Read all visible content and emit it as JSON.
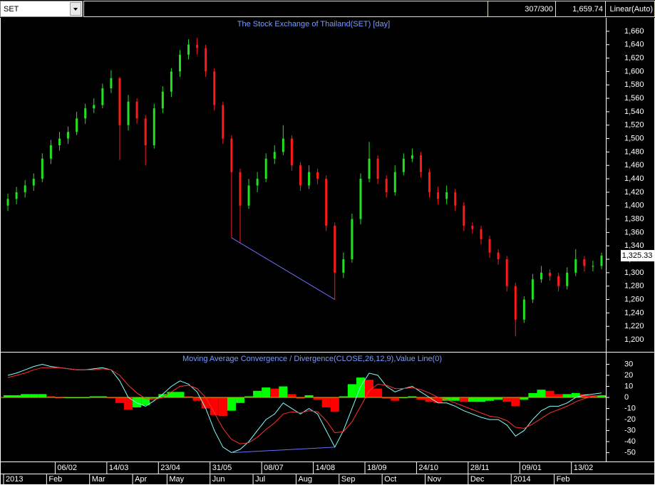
{
  "header": {
    "symbol": "SET",
    "count": "307/300",
    "value": "1,659.74",
    "scale": "Linear(Auto)"
  },
  "chart_data": [
    {
      "type": "candlestick",
      "title": "The Stock Exchange of Thailand(SET) [day]",
      "categories": [
        null,
        null,
        null,
        null,
        null,
        null,
        "06/02",
        null,
        null,
        null,
        null,
        null,
        "14/03",
        null,
        null,
        null,
        null,
        null,
        "23/04",
        null,
        null,
        null,
        null,
        null,
        "31/05",
        null,
        null,
        null,
        null,
        null,
        "08/07",
        null,
        null,
        null,
        null,
        null,
        "14/08",
        null,
        null,
        null,
        null,
        null,
        "18/09",
        null,
        null,
        null,
        null,
        null,
        "24/10",
        null,
        null,
        null,
        null,
        null,
        "28/11",
        null,
        null,
        null,
        null,
        null,
        "09/01",
        null,
        null,
        null,
        null,
        null,
        "13/02",
        null,
        null,
        null
      ],
      "month_labels": [
        "2013",
        null,
        null,
        null,
        null,
        "Feb",
        null,
        null,
        null,
        null,
        "Mar",
        null,
        null,
        null,
        null,
        "Apr",
        null,
        null,
        null,
        "May",
        null,
        null,
        null,
        null,
        "Jun",
        null,
        null,
        null,
        null,
        "Jul",
        null,
        null,
        null,
        null,
        "Aug",
        null,
        null,
        null,
        null,
        "Sep",
        null,
        null,
        null,
        null,
        "Oct",
        null,
        null,
        null,
        null,
        "Nov",
        null,
        null,
        null,
        null,
        "Dec",
        null,
        null,
        null,
        null,
        "2014",
        null,
        null,
        null,
        null,
        "Feb",
        null,
        null,
        null,
        null,
        null
      ],
      "open": [
        1400,
        1410,
        1420,
        1430,
        1440,
        1470,
        1490,
        1500,
        1510,
        1530,
        1545,
        1550,
        1575,
        1590,
        1520,
        1555,
        1530,
        1490,
        1545,
        1570,
        1600,
        1625,
        1640,
        1635,
        1600,
        1550,
        1500,
        1450,
        1400,
        1430,
        1440,
        1470,
        1480,
        1500,
        1460,
        1430,
        1450,
        1440,
        1370,
        1300,
        1320,
        1380,
        1440,
        1470,
        1440,
        1420,
        1450,
        1470,
        1475,
        1450,
        1420,
        1410,
        1420,
        1400,
        1370,
        1365,
        1350,
        1330,
        1320,
        1280,
        1230,
        1260,
        1290,
        1300,
        1295,
        1280,
        1300,
        1320,
        1310,
        1310
      ],
      "high": [
        1418,
        1428,
        1438,
        1448,
        1478,
        1498,
        1510,
        1518,
        1540,
        1552,
        1560,
        1582,
        1602,
        1592,
        1565,
        1560,
        1535,
        1552,
        1578,
        1605,
        1632,
        1648,
        1650,
        1640,
        1605,
        1555,
        1505,
        1455,
        1440,
        1450,
        1478,
        1490,
        1520,
        1505,
        1465,
        1460,
        1455,
        1445,
        1375,
        1330,
        1388,
        1448,
        1495,
        1475,
        1445,
        1460,
        1478,
        1485,
        1480,
        1455,
        1428,
        1430,
        1425,
        1405,
        1375,
        1370,
        1355,
        1335,
        1325,
        1285,
        1265,
        1298,
        1310,
        1305,
        1300,
        1308,
        1335,
        1325,
        1318,
        1330
      ],
      "low": [
        1392,
        1402,
        1412,
        1422,
        1435,
        1462,
        1482,
        1492,
        1505,
        1522,
        1538,
        1545,
        1568,
        1468,
        1512,
        1522,
        1460,
        1485,
        1538,
        1562,
        1592,
        1618,
        1625,
        1592,
        1542,
        1492,
        1352,
        1345,
        1395,
        1420,
        1435,
        1462,
        1475,
        1452,
        1422,
        1425,
        1432,
        1362,
        1260,
        1292,
        1315,
        1372,
        1435,
        1432,
        1412,
        1415,
        1445,
        1465,
        1442,
        1412,
        1402,
        1402,
        1392,
        1362,
        1358,
        1342,
        1322,
        1312,
        1272,
        1205,
        1225,
        1255,
        1285,
        1288,
        1272,
        1275,
        1295,
        1302,
        1302,
        1305
      ],
      "close": [
        1410,
        1420,
        1430,
        1440,
        1470,
        1490,
        1500,
        1510,
        1530,
        1545,
        1550,
        1575,
        1590,
        1520,
        1555,
        1530,
        1490,
        1545,
        1570,
        1600,
        1625,
        1640,
        1635,
        1600,
        1550,
        1500,
        1450,
        1400,
        1430,
        1440,
        1470,
        1480,
        1500,
        1460,
        1430,
        1450,
        1440,
        1370,
        1300,
        1320,
        1380,
        1440,
        1470,
        1440,
        1420,
        1450,
        1470,
        1475,
        1450,
        1420,
        1410,
        1420,
        1400,
        1370,
        1365,
        1350,
        1330,
        1320,
        1280,
        1230,
        1260,
        1290,
        1300,
        1295,
        1280,
        1300,
        1320,
        1310,
        1310,
        1325.33
      ],
      "last_close_label": "1,325.33",
      "up_color": "#22e022",
      "down_color": "#ff1a1a",
      "divergence_color": "#6f6fff",
      "ylim": [
        1182,
        1679
      ],
      "yticks": [
        {
          "value": 1200,
          "label": "1,200"
        },
        {
          "value": 1220,
          "label": "1,220"
        },
        {
          "value": 1240,
          "label": "1,240"
        },
        {
          "value": 1260,
          "label": "1,260"
        },
        {
          "value": 1280,
          "label": "1,280"
        },
        {
          "value": 1300,
          "label": "1,300"
        },
        {
          "value": 1320,
          "label": "1,320"
        },
        {
          "value": 1340,
          "label": "1,340"
        },
        {
          "value": 1360,
          "label": "1,360"
        },
        {
          "value": 1380,
          "label": "1,380"
        },
        {
          "value": 1400,
          "label": "1,400"
        },
        {
          "value": 1420,
          "label": "1,420"
        },
        {
          "value": 1440,
          "label": "1,440"
        },
        {
          "value": 1460,
          "label": "1,460"
        },
        {
          "value": 1480,
          "label": "1,480"
        },
        {
          "value": 1500,
          "label": "1,500"
        },
        {
          "value": 1520,
          "label": "1,520"
        },
        {
          "value": 1540,
          "label": "1,540"
        },
        {
          "value": 1560,
          "label": "1,560"
        },
        {
          "value": 1580,
          "label": "1,580"
        },
        {
          "value": 1600,
          "label": "1,600"
        },
        {
          "value": 1620,
          "label": "1,620"
        },
        {
          "value": 1640,
          "label": "1,640"
        },
        {
          "value": 1660,
          "label": "1,660"
        }
      ]
    },
    {
      "type": "macd",
      "title": "Moving Average Convergence / Divergence(CLOSE,26,12,9),Value Line(0)",
      "series": [
        {
          "color": "#80ffff",
          "values": [
            20,
            22,
            25,
            28,
            30,
            28,
            27,
            26,
            25,
            25,
            26,
            27,
            25,
            15,
            0,
            -5,
            -8,
            -3,
            3,
            10,
            15,
            12,
            5,
            -10,
            -30,
            -45,
            -50,
            -47,
            -40,
            -30,
            -20,
            -15,
            -5,
            -10,
            -15,
            -10,
            -15,
            -30,
            -45,
            -30,
            -10,
            10,
            22,
            20,
            10,
            5,
            8,
            10,
            5,
            0,
            -5,
            -5,
            -8,
            -12,
            -15,
            -18,
            -20,
            -20,
            -25,
            -35,
            -30,
            -20,
            -12,
            -8,
            -8,
            -5,
            0,
            2,
            3,
            4
          ]
        },
        {
          "color": "#ff3030",
          "values": [
            18,
            20,
            22,
            25,
            27,
            27,
            27,
            26,
            25,
            25,
            25,
            26,
            25,
            20,
            11,
            4,
            -1,
            -2,
            0,
            5,
            10,
            11,
            8,
            0,
            -14,
            -28,
            -38,
            -42,
            -41,
            -36,
            -29,
            -23,
            -15,
            -13,
            -14,
            -12,
            -13,
            -21,
            -32,
            -31,
            -22,
            -8,
            6,
            12,
            11,
            8,
            8,
            9,
            7,
            4,
            0,
            -2,
            -5,
            -8,
            -11,
            -14,
            -17,
            -18,
            -21,
            -27,
            -28,
            -24,
            -19,
            -14,
            -11,
            -8,
            -4,
            -1,
            1,
            2
          ]
        }
      ],
      "histogram": [
        2,
        2,
        3,
        3,
        3,
        1,
        0,
        0,
        0,
        0,
        1,
        1,
        0,
        -5,
        -11,
        -9,
        -7,
        -1,
        3,
        5,
        5,
        1,
        -3,
        -10,
        -16,
        -17,
        -12,
        -5,
        1,
        6,
        9,
        8,
        10,
        3,
        -1,
        2,
        -2,
        -9,
        -13,
        1,
        12,
        18,
        16,
        8,
        -1,
        -3,
        0,
        1,
        -2,
        -4,
        -5,
        -3,
        -3,
        -4,
        -4,
        -4,
        -3,
        -2,
        -4,
        -8,
        -2,
        4,
        7,
        6,
        3,
        3,
        4,
        3,
        2,
        2
      ],
      "up_color": "#00ff00",
      "down_color": "#ff0000",
      "value_line_color": "#c8b000",
      "ylim": [
        -58,
        40
      ],
      "yticks": [
        30,
        20,
        10,
        0,
        -10,
        -20,
        -30,
        -40,
        -50
      ]
    }
  ]
}
